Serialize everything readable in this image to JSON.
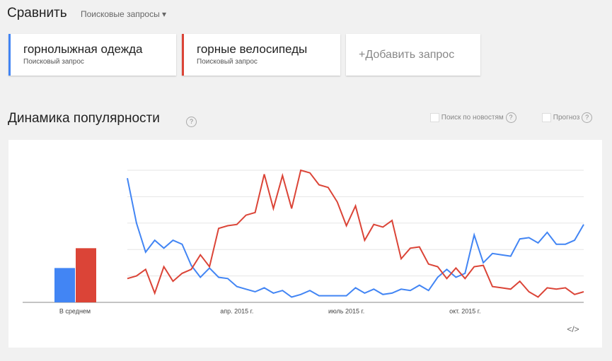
{
  "header": {
    "title": "Сравнить",
    "dropdown": "Поисковые запросы"
  },
  "terms": {
    "subtitle": "Поисковый запрос",
    "add": "+Добавить запрос"
  },
  "section": {
    "title": "Динамика популярности",
    "help": "?",
    "options": [
      "Поиск по новостям",
      "Прогноз"
    ]
  },
  "embed": "</>",
  "chart_data": {
    "type": "line",
    "categories": [
      null,
      null,
      null,
      null,
      null,
      null,
      null,
      null,
      null,
      null,
      null,
      null,
      "апр. 2015 г.",
      null,
      null,
      null,
      null,
      null,
      null,
      null,
      null,
      null,
      null,
      null,
      "июль 2015 г.",
      null,
      null,
      null,
      null,
      null,
      null,
      null,
      null,
      null,
      null,
      null,
      null,
      "окт. 2015 г.",
      null,
      null,
      null,
      null,
      null,
      null,
      null,
      null,
      null,
      null,
      null,
      null,
      null
    ],
    "series": [
      {
        "name": "горнолыжная одежда",
        "color": "#4285f4",
        "values": [
          94,
          60,
          38,
          47,
          41,
          47,
          44,
          28,
          19,
          26,
          19,
          18,
          12,
          10,
          8,
          11,
          7,
          9,
          4,
          6,
          9,
          5,
          5,
          5,
          5,
          11,
          7,
          10,
          6,
          7,
          10,
          9,
          13,
          9,
          19,
          25,
          19,
          22,
          51,
          30,
          37,
          36,
          35,
          48,
          49,
          45,
          53,
          44,
          44,
          47,
          59
        ]
      },
      {
        "name": "горные велосипеды",
        "color": "#db4437",
        "values": [
          18,
          20,
          25,
          7,
          27,
          16,
          22,
          25,
          36,
          27,
          56,
          58,
          59,
          66,
          68,
          97,
          71,
          96,
          71,
          100,
          98,
          89,
          87,
          76,
          58,
          73,
          47,
          59,
          57,
          62,
          33,
          41,
          42,
          29,
          27,
          18,
          26,
          18,
          27,
          28,
          12,
          11,
          10,
          16,
          8,
          4,
          11,
          10,
          11,
          6,
          8
        ]
      }
    ],
    "averages": {
      "label": "В среднем",
      "values": [
        26,
        41
      ]
    },
    "ylim": [
      0,
      100
    ],
    "yticks": [
      0,
      20,
      40,
      60,
      80,
      100
    ],
    "grid": true
  }
}
